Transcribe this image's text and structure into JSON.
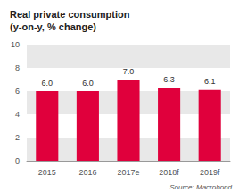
{
  "chart_data": {
    "type": "bar",
    "title": "Real private consumption\n(y-on-y, % change)",
    "categories": [
      "2015",
      "2016",
      "2017e",
      "2018f",
      "2019f"
    ],
    "values": [
      6.0,
      6.0,
      7.0,
      6.3,
      6.1
    ],
    "value_labels": [
      "6.0",
      "6.0",
      "7.0",
      "6.3",
      "6.1"
    ],
    "data_labels": true,
    "color": "#e0003c",
    "ylim": [
      0,
      10
    ],
    "yticks": [
      0,
      2,
      4,
      6,
      8,
      10
    ],
    "grid": true,
    "annotations": [
      "Source: Macrobond"
    ]
  }
}
